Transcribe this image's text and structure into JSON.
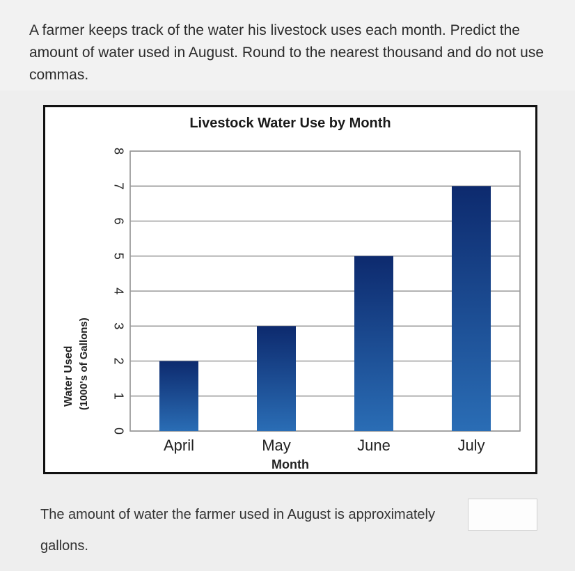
{
  "question": {
    "text": "A farmer keeps track of the water his livestock uses each month. Predict the amount of water used in August. Round to the nearest thousand and do not use commas."
  },
  "chart_data": {
    "type": "bar",
    "title": "Livestock Water Use by Month",
    "xlabel": "Month",
    "ylabel_line1": "Water Used",
    "ylabel_line2": "(1000's of Gallons)",
    "categories": [
      "April",
      "May",
      "June",
      "July"
    ],
    "values": [
      2,
      3,
      5,
      7
    ],
    "ylim": [
      0,
      8
    ],
    "yticks": [
      "0",
      "1",
      "2",
      "3",
      "4",
      "5",
      "6",
      "7",
      "8"
    ],
    "grid": true,
    "bar_color_top": "#0d2a6e",
    "bar_color_bottom": "#2a6db5"
  },
  "answer": {
    "prompt": "The amount of water the farmer used in August is approximately",
    "input_value": "",
    "suffix": "gallons."
  }
}
